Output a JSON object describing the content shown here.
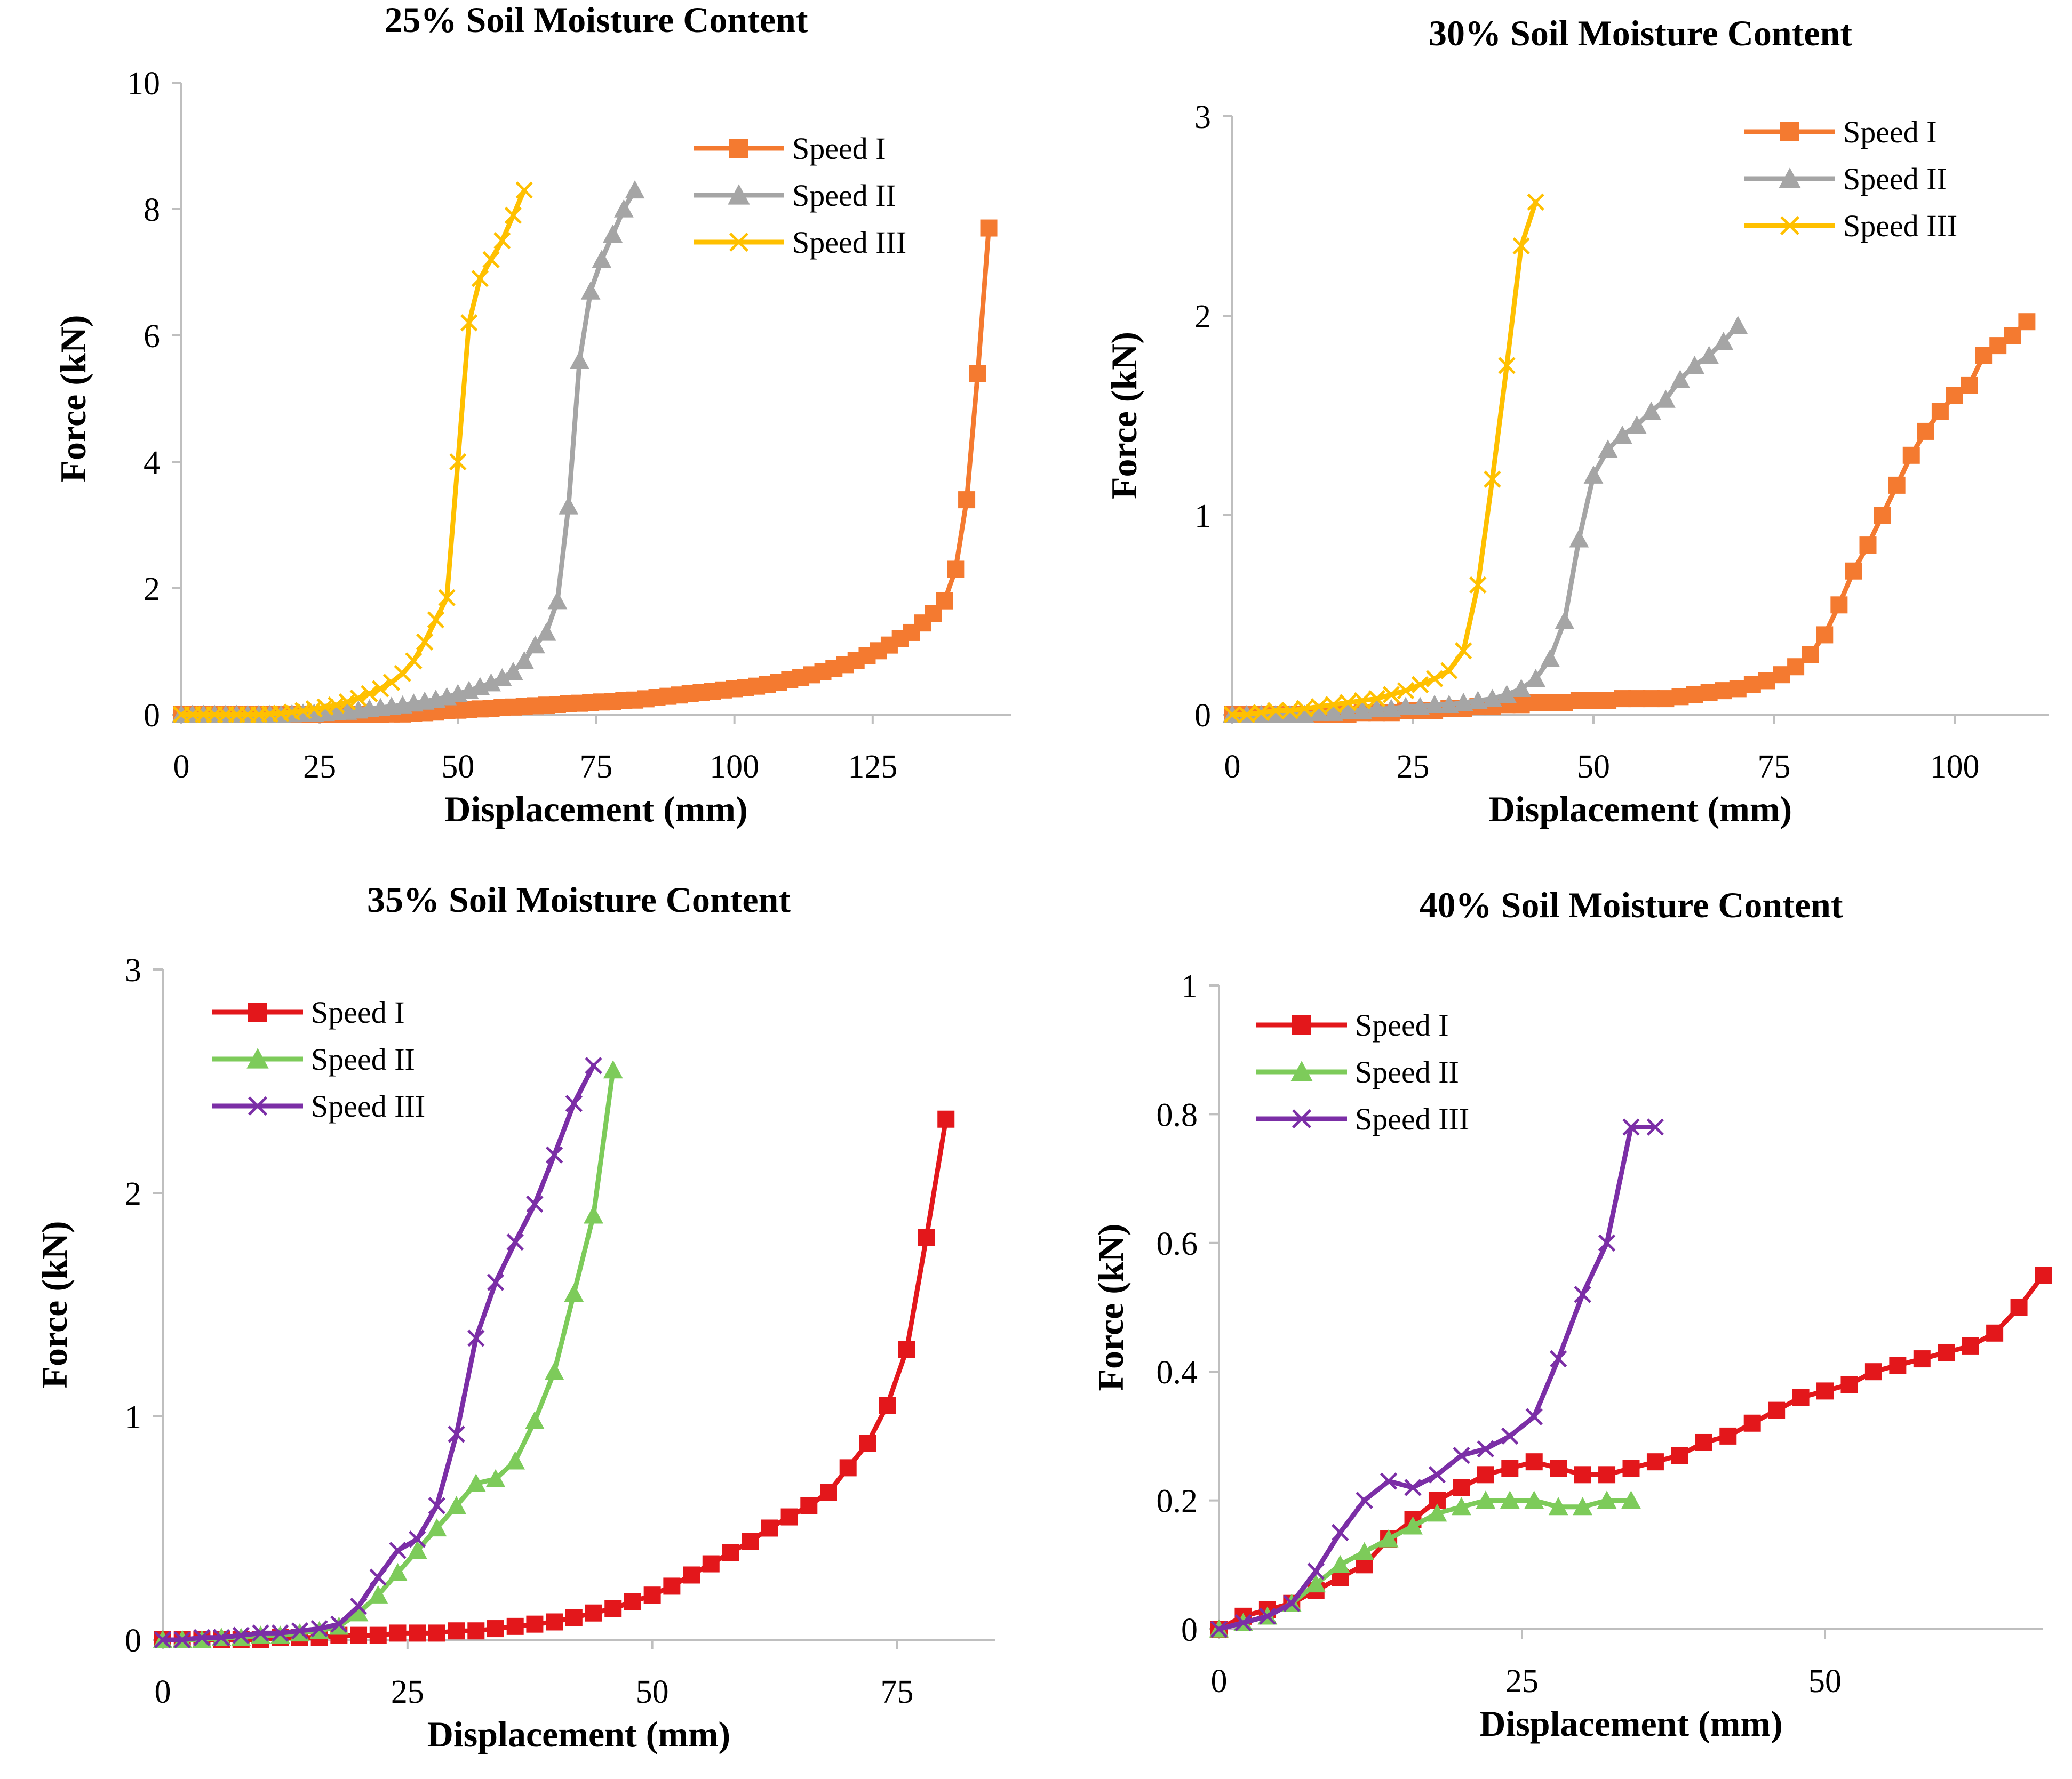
{
  "chart_data": [
    {
      "id": "p25",
      "type": "line",
      "title": "25% Soil Moisture Content",
      "xlabel": "Displacement (mm)",
      "ylabel": "Force (kN)",
      "xlim": [
        0,
        150
      ],
      "ylim": [
        0,
        10
      ],
      "xticks": [
        0,
        25,
        50,
        75,
        100,
        125
      ],
      "yticks": [
        0,
        2,
        4,
        6,
        8,
        10
      ],
      "legend_position": "top-right",
      "series": [
        {
          "name": "Speed I",
          "color": "#F47A30",
          "marker": "square",
          "x": [
            0,
            2,
            4,
            6,
            8,
            10,
            12,
            14,
            16,
            18,
            20,
            22,
            24,
            26,
            28,
            30,
            32,
            34,
            36,
            38,
            40,
            42,
            44,
            46,
            48,
            50,
            52,
            54,
            56,
            58,
            60,
            62,
            64,
            66,
            68,
            70,
            72,
            74,
            76,
            78,
            80,
            82,
            84,
            86,
            88,
            90,
            92,
            94,
            96,
            98,
            100,
            102,
            104,
            106,
            108,
            110,
            112,
            114,
            116,
            118,
            120,
            122,
            124,
            126,
            128,
            130,
            132,
            134,
            136,
            138,
            140,
            142,
            144,
            146
          ],
          "values": [
            0,
            0,
            0,
            0,
            0,
            0,
            0,
            0,
            0,
            0,
            0,
            0,
            0,
            0,
            0,
            0,
            0,
            0,
            0,
            0.01,
            0.01,
            0.02,
            0.03,
            0.04,
            0.06,
            0.07,
            0.08,
            0.09,
            0.1,
            0.11,
            0.12,
            0.13,
            0.14,
            0.15,
            0.16,
            0.17,
            0.18,
            0.19,
            0.2,
            0.21,
            0.22,
            0.23,
            0.25,
            0.27,
            0.29,
            0.31,
            0.33,
            0.35,
            0.37,
            0.39,
            0.41,
            0.43,
            0.45,
            0.48,
            0.51,
            0.55,
            0.59,
            0.63,
            0.68,
            0.73,
            0.79,
            0.86,
            0.93,
            1.01,
            1.1,
            1.2,
            1.3,
            1.45,
            1.6,
            1.8,
            2.3,
            3.4,
            5.4,
            7.7
          ]
        },
        {
          "name": "Speed II",
          "color": "#A5A5A5",
          "marker": "triangle",
          "x": [
            0,
            2,
            4,
            6,
            8,
            10,
            12,
            14,
            16,
            18,
            20,
            22,
            24,
            26,
            28,
            30,
            32,
            34,
            36,
            38,
            40,
            42,
            44,
            46,
            48,
            50,
            52,
            54,
            56,
            58,
            60,
            62,
            64,
            66,
            68,
            70,
            72,
            74,
            76,
            78,
            80,
            82
          ],
          "values": [
            0,
            0,
            0,
            0,
            0,
            0,
            0,
            0,
            0,
            0,
            0.01,
            0.02,
            0.02,
            0.03,
            0.04,
            0.05,
            0.07,
            0.09,
            0.11,
            0.13,
            0.15,
            0.18,
            0.21,
            0.24,
            0.28,
            0.33,
            0.38,
            0.44,
            0.5,
            0.58,
            0.68,
            0.85,
            1.1,
            1.3,
            1.8,
            3.3,
            5.6,
            6.7,
            7.2,
            7.6,
            8.0,
            8.3
          ]
        },
        {
          "name": "Speed III",
          "color": "#FFC000",
          "marker": "x",
          "x": [
            0,
            2,
            4,
            6,
            8,
            10,
            12,
            14,
            16,
            18,
            20,
            22,
            24,
            26,
            28,
            30,
            32,
            34,
            36,
            38,
            40,
            42,
            44,
            46,
            48,
            50,
            52,
            54,
            56,
            58,
            60,
            62
          ],
          "values": [
            0,
            0,
            0,
            0,
            0,
            0,
            0,
            0,
            0.01,
            0.02,
            0.04,
            0.06,
            0.09,
            0.12,
            0.15,
            0.2,
            0.26,
            0.33,
            0.41,
            0.51,
            0.65,
            0.85,
            1.15,
            1.5,
            1.85,
            4.0,
            6.2,
            6.9,
            7.2,
            7.5,
            7.9,
            8.3
          ]
        }
      ]
    },
    {
      "id": "p30",
      "type": "line",
      "title": "30% Soil Moisture Content",
      "xlabel": "Displacement (mm)",
      "ylabel": "Force (kN)",
      "xlim": [
        0,
        113
      ],
      "ylim": [
        0,
        3
      ],
      "xticks": [
        0,
        25,
        50,
        75,
        100
      ],
      "yticks": [
        0,
        1,
        2,
        3
      ],
      "legend_position": "top-right",
      "series": [
        {
          "name": "Speed I",
          "color": "#F47A30",
          "marker": "square",
          "x": [
            0,
            2,
            4,
            6,
            8,
            10,
            12,
            14,
            16,
            18,
            20,
            22,
            24,
            26,
            28,
            30,
            32,
            34,
            36,
            38,
            40,
            42,
            44,
            46,
            48,
            50,
            52,
            54,
            56,
            58,
            60,
            62,
            64,
            66,
            68,
            70,
            72,
            74,
            76,
            78,
            80,
            82,
            84,
            86,
            88,
            90,
            92,
            94,
            96,
            98,
            100,
            102,
            104,
            106,
            108,
            110
          ],
          "values": [
            0,
            0,
            0,
            0,
            0,
            0,
            0,
            0,
            0,
            0.01,
            0.01,
            0.01,
            0.02,
            0.02,
            0.02,
            0.03,
            0.03,
            0.04,
            0.04,
            0.05,
            0.05,
            0.06,
            0.06,
            0.06,
            0.07,
            0.07,
            0.07,
            0.08,
            0.08,
            0.08,
            0.08,
            0.09,
            0.1,
            0.11,
            0.12,
            0.13,
            0.15,
            0.17,
            0.2,
            0.24,
            0.3,
            0.4,
            0.55,
            0.72,
            0.85,
            1.0,
            1.15,
            1.3,
            1.42,
            1.52,
            1.6,
            1.65,
            1.8,
            1.85,
            1.9,
            1.97
          ]
        },
        {
          "name": "Speed II",
          "color": "#A5A5A5",
          "marker": "triangle",
          "x": [
            0,
            2,
            4,
            6,
            8,
            10,
            12,
            14,
            16,
            18,
            20,
            22,
            24,
            26,
            28,
            30,
            32,
            34,
            36,
            38,
            40,
            42,
            44,
            46,
            48,
            50,
            52,
            54,
            56,
            58,
            60,
            62,
            64,
            66,
            68,
            70
          ],
          "values": [
            0,
            0,
            0,
            0,
            0,
            0,
            0.01,
            0.01,
            0.02,
            0.02,
            0.03,
            0.03,
            0.04,
            0.04,
            0.05,
            0.05,
            0.06,
            0.07,
            0.08,
            0.1,
            0.13,
            0.18,
            0.28,
            0.47,
            0.88,
            1.2,
            1.33,
            1.4,
            1.45,
            1.52,
            1.58,
            1.68,
            1.75,
            1.8,
            1.87,
            1.95
          ]
        },
        {
          "name": "Speed III",
          "color": "#FFC000",
          "marker": "x",
          "x": [
            0,
            2,
            4,
            6,
            8,
            10,
            12,
            14,
            16,
            18,
            20,
            22,
            24,
            26,
            28,
            30,
            32,
            34,
            36,
            38,
            40,
            42
          ],
          "values": [
            0,
            0,
            0.01,
            0.02,
            0.02,
            0.03,
            0.04,
            0.05,
            0.06,
            0.07,
            0.08,
            0.1,
            0.12,
            0.15,
            0.18,
            0.22,
            0.32,
            0.65,
            1.18,
            1.75,
            2.35,
            2.57
          ]
        }
      ]
    },
    {
      "id": "p35",
      "type": "line",
      "title": "35% Soil Moisture Content",
      "xlabel": "Displacement (mm)",
      "ylabel": "Force (kN)",
      "xlim": [
        0,
        85
      ],
      "ylim": [
        0,
        3
      ],
      "xticks": [
        0,
        25,
        50,
        75
      ],
      "yticks": [
        0,
        1,
        2,
        3
      ],
      "legend_position": "top-left",
      "series": [
        {
          "name": "Speed I",
          "color": "#E3171B",
          "marker": "square",
          "x": [
            0,
            2,
            4,
            6,
            8,
            10,
            12,
            14,
            16,
            18,
            20,
            22,
            24,
            26,
            28,
            30,
            32,
            34,
            36,
            38,
            40,
            42,
            44,
            46,
            48,
            50,
            52,
            54,
            56,
            58,
            60,
            62,
            64,
            66,
            68,
            70,
            72,
            74,
            76,
            78,
            80
          ],
          "values": [
            0,
            0,
            0,
            0,
            0,
            0,
            0.01,
            0.01,
            0.01,
            0.02,
            0.02,
            0.02,
            0.03,
            0.03,
            0.03,
            0.04,
            0.04,
            0.05,
            0.06,
            0.07,
            0.08,
            0.1,
            0.12,
            0.14,
            0.17,
            0.2,
            0.24,
            0.29,
            0.34,
            0.39,
            0.44,
            0.5,
            0.55,
            0.6,
            0.66,
            0.77,
            0.88,
            1.05,
            1.3,
            1.8,
            2.33
          ]
        },
        {
          "name": "Speed II",
          "color": "#7DCB5A",
          "marker": "triangle",
          "x": [
            0,
            2,
            4,
            6,
            8,
            10,
            12,
            14,
            16,
            18,
            20,
            22,
            24,
            26,
            28,
            30,
            32,
            34,
            36,
            38,
            40,
            42,
            44,
            46
          ],
          "values": [
            0,
            0,
            0,
            0.01,
            0.01,
            0.02,
            0.02,
            0.03,
            0.04,
            0.06,
            0.12,
            0.2,
            0.3,
            0.4,
            0.5,
            0.6,
            0.7,
            0.72,
            0.8,
            0.98,
            1.2,
            1.55,
            1.9,
            2.55
          ]
        },
        {
          "name": "Speed III",
          "color": "#7B2EA6",
          "marker": "x",
          "x": [
            0,
            2,
            4,
            6,
            8,
            10,
            12,
            14,
            16,
            18,
            20,
            22,
            24,
            26,
            28,
            30,
            32,
            34,
            36,
            38,
            40,
            42,
            44
          ],
          "values": [
            0,
            0,
            0.01,
            0.01,
            0.02,
            0.03,
            0.03,
            0.04,
            0.05,
            0.07,
            0.15,
            0.28,
            0.4,
            0.45,
            0.6,
            0.92,
            1.35,
            1.6,
            1.78,
            1.95,
            2.17,
            2.4,
            2.57
          ]
        }
      ]
    },
    {
      "id": "p40",
      "type": "line",
      "title": "40% Soil Moisture Content",
      "xlabel": "Displacement (mm)",
      "ylabel": "Force (kN)",
      "xlim": [
        0,
        68
      ],
      "ylim": [
        0,
        1
      ],
      "xticks": [
        0,
        25,
        50
      ],
      "yticks": [
        0,
        0.2,
        0.4,
        0.6,
        0.8,
        1
      ],
      "legend_position": "top-left",
      "series": [
        {
          "name": "Speed I",
          "color": "#E3171B",
          "marker": "square",
          "x": [
            0,
            2,
            4,
            6,
            8,
            10,
            12,
            14,
            16,
            18,
            20,
            22,
            24,
            26,
            28,
            30,
            32,
            34,
            36,
            38,
            40,
            42,
            44,
            46,
            48,
            50,
            52,
            54,
            56,
            58,
            60,
            62,
            64,
            66,
            68
          ],
          "values": [
            0,
            0.02,
            0.03,
            0.04,
            0.06,
            0.08,
            0.1,
            0.14,
            0.17,
            0.2,
            0.22,
            0.24,
            0.25,
            0.26,
            0.25,
            0.24,
            0.24,
            0.25,
            0.26,
            0.27,
            0.29,
            0.3,
            0.32,
            0.34,
            0.36,
            0.37,
            0.38,
            0.4,
            0.41,
            0.42,
            0.43,
            0.44,
            0.46,
            0.5,
            0.55
          ]
        },
        {
          "name": "Speed II",
          "color": "#7DCB5A",
          "marker": "triangle",
          "x": [
            0,
            2,
            4,
            6,
            8,
            10,
            12,
            14,
            16,
            18,
            20,
            22,
            24,
            26,
            28,
            30,
            32,
            34
          ],
          "values": [
            0,
            0.01,
            0.02,
            0.04,
            0.07,
            0.1,
            0.12,
            0.14,
            0.16,
            0.18,
            0.19,
            0.2,
            0.2,
            0.2,
            0.19,
            0.19,
            0.2,
            0.2
          ]
        },
        {
          "name": "Speed III",
          "color": "#7B2EA6",
          "marker": "x",
          "x": [
            0,
            2,
            4,
            6,
            8,
            10,
            12,
            14,
            16,
            18,
            20,
            22,
            24,
            26,
            28,
            30,
            32,
            34,
            36
          ],
          "values": [
            0,
            0.01,
            0.02,
            0.04,
            0.09,
            0.15,
            0.2,
            0.23,
            0.22,
            0.24,
            0.27,
            0.28,
            0.3,
            0.33,
            0.42,
            0.52,
            0.6,
            0.78,
            0.78
          ]
        }
      ]
    }
  ]
}
